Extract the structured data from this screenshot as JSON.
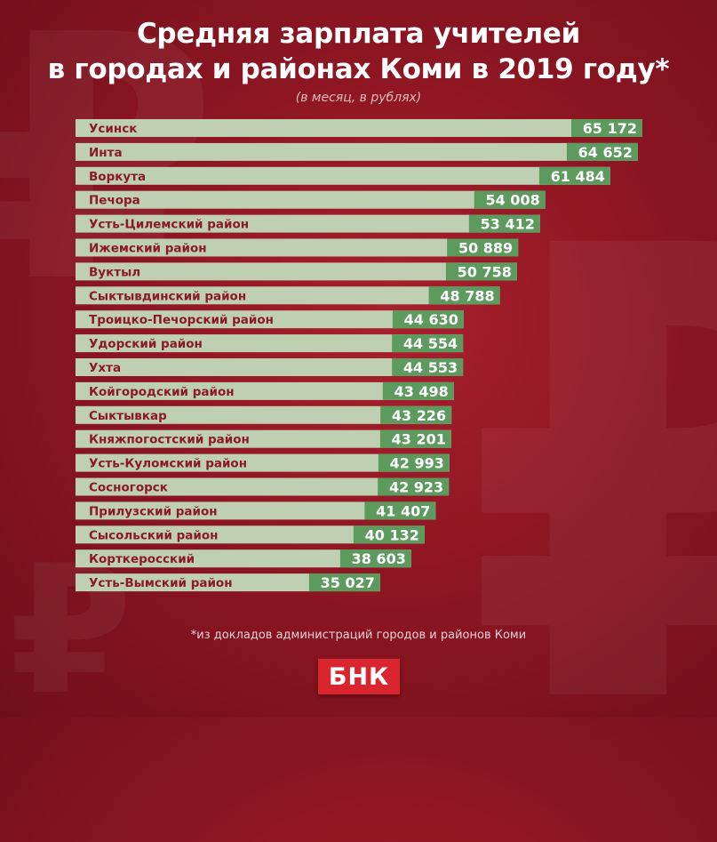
{
  "title_line1": "Средняя зарплата учителей",
  "title_line2": "в городах и районах Коми в 2019 году*",
  "subtitle": "(в месяц, в рублях)",
  "footnote": "*из докладов администраций городов и районов Коми",
  "logo": "БНК",
  "colors": {
    "bar_light": "#bfcfb1",
    "value_box": "#5c9a5e",
    "label_text": "#8b1a26",
    "value_text": "#ffffff"
  },
  "chart_data": {
    "type": "bar",
    "orientation": "horizontal",
    "title": "Средняя зарплата учителей в городах и районах Коми в 2019 году*",
    "subtitle": "(в месяц, в рублях)",
    "xlabel": "",
    "ylabel": "",
    "xlim": [
      0,
      65172
    ],
    "grid": false,
    "categories": [
      "Усинск",
      "Инта",
      "Воркута",
      "Печора",
      "Усть-Цилемский район",
      "Ижемский район",
      "Вуктыл",
      "Сыктывдинский район",
      "Троицко-Печорский район",
      "Удорский район",
      "Ухта",
      "Койгородский район",
      "Сыктывкар",
      "Княжпогостский район",
      "Усть-Куломский район",
      "Сосногорск",
      "Прилузский район",
      "Сысольский район",
      "Корткеросский",
      "Усть-Вымский район"
    ],
    "values": [
      65172,
      64652,
      61484,
      54008,
      53412,
      50889,
      50758,
      48788,
      44630,
      44554,
      44553,
      43498,
      43226,
      43201,
      42993,
      42923,
      41407,
      40132,
      38603,
      35027
    ],
    "value_labels": [
      "65 172",
      "64 652",
      "61 484",
      "54 008",
      "53 412",
      "50 889",
      "50 758",
      "48 788",
      "44 630",
      "44 554",
      "44 553",
      "43 498",
      "43 226",
      "43 201",
      "42 993",
      "42 923",
      "41 407",
      "40 132",
      "38 603",
      "35 027"
    ]
  }
}
